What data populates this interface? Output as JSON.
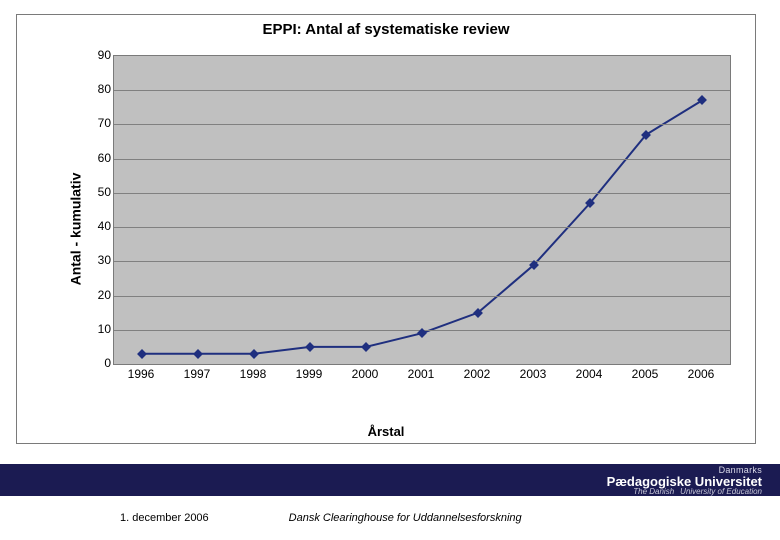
{
  "chart": {
    "type": "line",
    "title": "EPPI: Antal af systematiske review",
    "xlabel": "Årstal",
    "ylabel": "Antal - kumulativ",
    "categories": [
      "1996",
      "1997",
      "1998",
      "1999",
      "2000",
      "2001",
      "2002",
      "2003",
      "2004",
      "2005",
      "2006"
    ],
    "values": [
      3,
      3,
      3,
      5,
      5,
      9,
      15,
      29,
      47,
      67,
      77
    ],
    "ylim": [
      0,
      90
    ],
    "ytick_step": 10,
    "line_color": "#1f2f7f",
    "marker_color": "#1f2f7f",
    "marker_style": "diamond",
    "marker_size": 7,
    "line_width": 2,
    "plot_background": "#c0c0c0",
    "grid_color": "#808080",
    "border_color": "#7a7a7a",
    "title_fontsize": 15,
    "label_fontsize": 14,
    "tick_fontsize": 12
  },
  "footer": {
    "band_color": "#1b1b52",
    "date": "1. december 2006",
    "org": "Dansk Clearinghouse for Uddannelsesforskning",
    "uni_top": "Danmarks",
    "uni_main": "Pædagogiske Universitet",
    "uni_sub_en1": "The Danish",
    "uni_sub_en2": "University of Education"
  }
}
